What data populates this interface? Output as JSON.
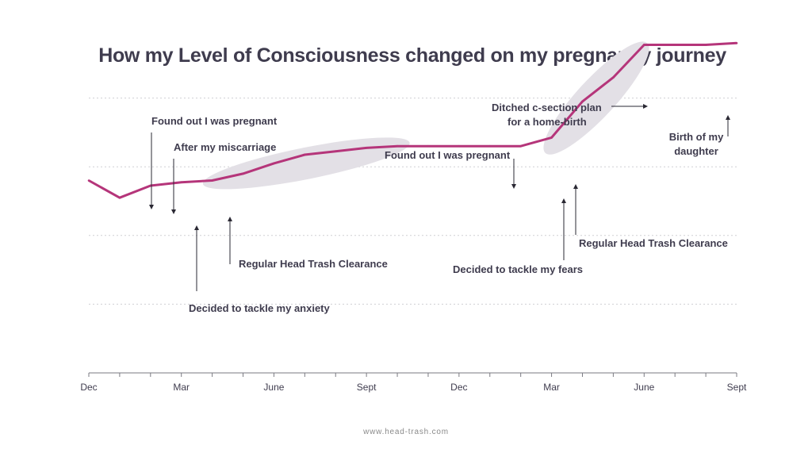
{
  "chart_data": {
    "type": "line",
    "title": "How my Level of Consciousness changed on my pregnancy journey",
    "xlabel": "",
    "ylabel": "",
    "x_tick_labels": [
      "Dec",
      "Mar",
      "June",
      "Sept",
      "Dec",
      "Mar",
      "June",
      "Sept"
    ],
    "x_tick_months": [
      0,
      3,
      6,
      9,
      12,
      15,
      18,
      21
    ],
    "xlim": [
      0,
      21
    ],
    "ylim": [
      0,
      100
    ],
    "grid": true,
    "series": [
      {
        "color": "#b5357a",
        "points": [
          {
            "x": 0,
            "y": 56
          },
          {
            "x": 1,
            "y": 51
          },
          {
            "x": 2,
            "y": 54.5
          },
          {
            "x": 3,
            "y": 55.5
          },
          {
            "x": 4,
            "y": 56
          },
          {
            "x": 5,
            "y": 58
          },
          {
            "x": 6,
            "y": 61
          },
          {
            "x": 7,
            "y": 63.5
          },
          {
            "x": 8,
            "y": 64.5
          },
          {
            "x": 9,
            "y": 65.5
          },
          {
            "x": 10,
            "y": 66
          },
          {
            "x": 11,
            "y": 66
          },
          {
            "x": 12,
            "y": 66
          },
          {
            "x": 13,
            "y": 66
          },
          {
            "x": 14,
            "y": 66
          },
          {
            "x": 15,
            "y": 68.5
          },
          {
            "x": 16,
            "y": 79
          },
          {
            "x": 17,
            "y": 86
          },
          {
            "x": 18,
            "y": 95.5
          },
          {
            "x": 19,
            "y": 95.5
          },
          {
            "x": 20,
            "y": 95.5
          },
          {
            "x": 21,
            "y": 96
          }
        ]
      }
    ],
    "annotations": [
      {
        "text": "Found out I was pregnant",
        "x": 2,
        "y": 54.5
      },
      {
        "text": "After my miscarriage",
        "x": 2.75,
        "y": 55.3
      },
      {
        "text": "Decided to tackle my anxiety",
        "x": 3.5,
        "y": 55.8
      },
      {
        "text": "Regular Head Trash Clearance",
        "x": 4.6,
        "y": 57.5
      },
      {
        "text": "Found out I was pregnant",
        "x": 13.8,
        "y": 66
      },
      {
        "text": "Decided to tackle my fears",
        "x": 15.4,
        "y": 71
      },
      {
        "text": "Regular Head Trash Clearance",
        "x": 15.8,
        "y": 74
      },
      {
        "text": "Ditched c-section plan for a home-birth",
        "x": 18,
        "y": 95.5
      },
      {
        "text": "Birth of my daughter",
        "x": 20.9,
        "y": 95.5
      }
    ],
    "highlights": [
      {
        "x_start": 3.7,
        "x_end": 10.4,
        "y_center": 61
      },
      {
        "x_start": 14.8,
        "x_end": 18.1,
        "y_center": 80
      }
    ]
  },
  "footer": "www.head-trash.com",
  "colors": {
    "line": "#b5357a",
    "text": "#3f3c4e",
    "grid": "#cfcfd4",
    "axis": "#7a7a82",
    "highlight": "#e3e0e6"
  }
}
